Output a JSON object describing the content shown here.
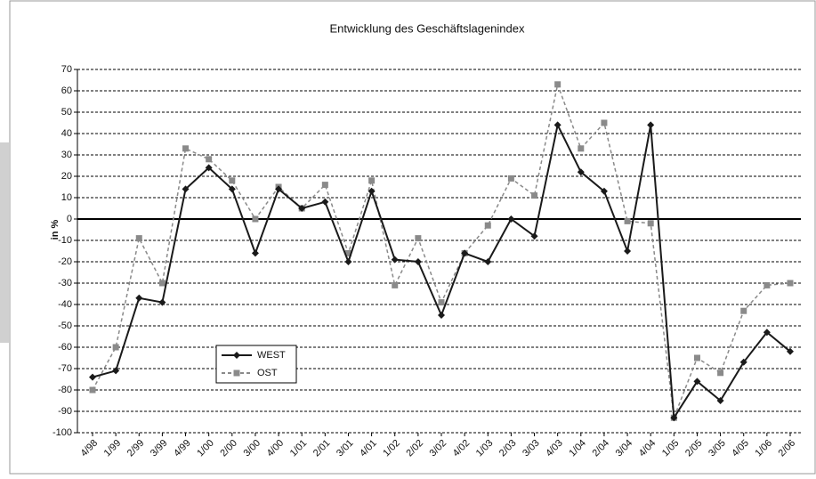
{
  "chart_data": {
    "type": "line",
    "title": "Entwicklung des Geschäftslagenindex",
    "y_label": "in %",
    "categories": [
      "4/98",
      "1/99",
      "2/99",
      "3/99",
      "4/99",
      "1/00",
      "2/00",
      "3/00",
      "4/00",
      "1/01",
      "2/01",
      "3/01",
      "4/01",
      "1/02",
      "2/02",
      "3/02",
      "4/02",
      "1/03",
      "2/03",
      "3/03",
      "4/03",
      "1/04",
      "2/04",
      "3/04",
      "4/04",
      "1/05",
      "2/05",
      "3/05",
      "4/05",
      "1/06",
      "2/06"
    ],
    "series": [
      {
        "name": "WEST",
        "color": "#1a1a1a",
        "marker": "diamond",
        "dash": false,
        "values": [
          -74,
          -71,
          -37,
          -39,
          14,
          24,
          14,
          -16,
          14,
          5,
          8,
          -20,
          13,
          -19,
          -20,
          -45,
          -16,
          -20,
          0,
          -8,
          44,
          22,
          13,
          -15,
          44,
          -93,
          -76,
          -85,
          -67,
          -53,
          -62
        ]
      },
      {
        "name": "OST",
        "color": "#8a8a8a",
        "marker": "square",
        "dash": true,
        "values": [
          -80,
          -60,
          -9,
          -30,
          33,
          28,
          18,
          0,
          15,
          5,
          16,
          -16,
          18,
          -31,
          -9,
          -39,
          -16,
          -3,
          19,
          11,
          63,
          33,
          45,
          -1,
          -2,
          -93,
          -65,
          -72,
          -43,
          -31,
          -30
        ]
      }
    ],
    "ylim": [
      -100,
      70
    ],
    "yticks": [
      -100,
      -90,
      -80,
      -70,
      -60,
      -50,
      -40,
      -30,
      -20,
      -10,
      0,
      10,
      20,
      30,
      40,
      50,
      60,
      70
    ],
    "grid": true,
    "legend": "lower left"
  }
}
